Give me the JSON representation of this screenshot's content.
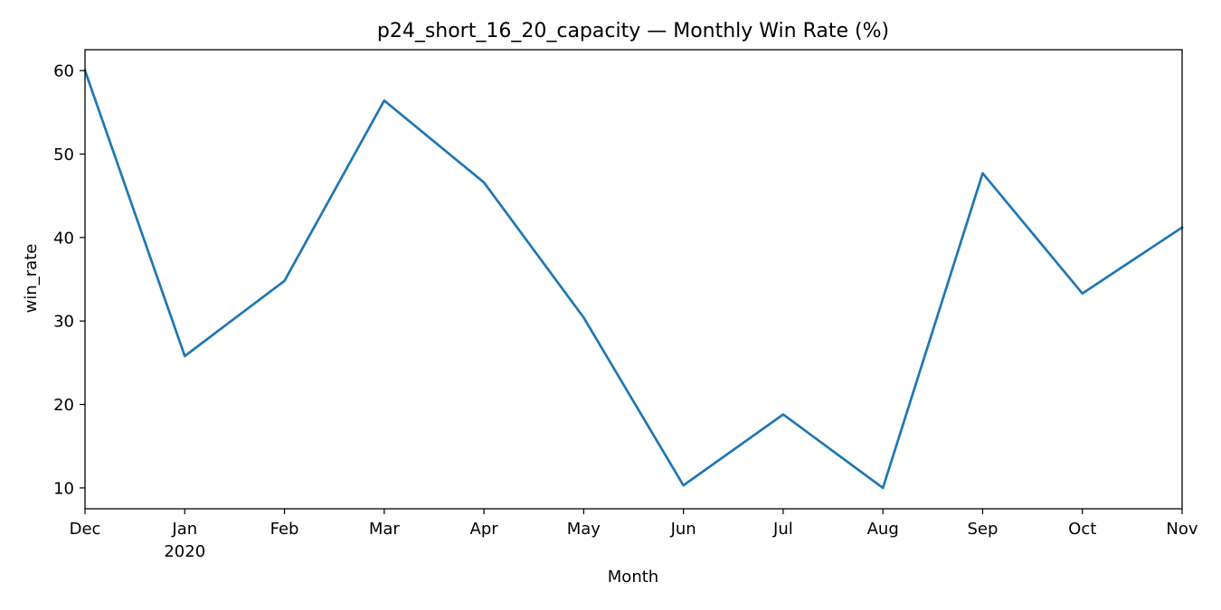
{
  "chart_data": {
    "type": "line",
    "title": "p24_short_16_20_capacity — Monthly Win Rate (%)",
    "xlabel": "Month",
    "ylabel": "win_rate",
    "x": [
      "2019-12",
      "2020-01",
      "2020-02",
      "2020-03",
      "2020-04",
      "2020-05",
      "2020-06",
      "2020-07",
      "2020-08",
      "2020-09",
      "2020-10",
      "2020-11"
    ],
    "x_tick_labels": [
      "Dec",
      "Jan",
      "Feb",
      "Mar",
      "Apr",
      "May",
      "Jun",
      "Jul",
      "Aug",
      "Sep",
      "Oct",
      "Nov"
    ],
    "x_tick_sublabels": [
      "",
      "2020",
      "",
      "",
      "",
      "",
      "",
      "",
      "",
      "",
      "",
      ""
    ],
    "series": [
      {
        "values": [
          60.0,
          25.8,
          34.8,
          56.4,
          46.6,
          30.4,
          10.3,
          18.8,
          10.0,
          47.7,
          33.3,
          41.2
        ],
        "color": "#1f77b4"
      }
    ],
    "y_ticks": [
      10,
      20,
      30,
      40,
      50,
      60
    ],
    "ylim": [
      7.5,
      62.5
    ],
    "grid": false,
    "legend": "none"
  }
}
